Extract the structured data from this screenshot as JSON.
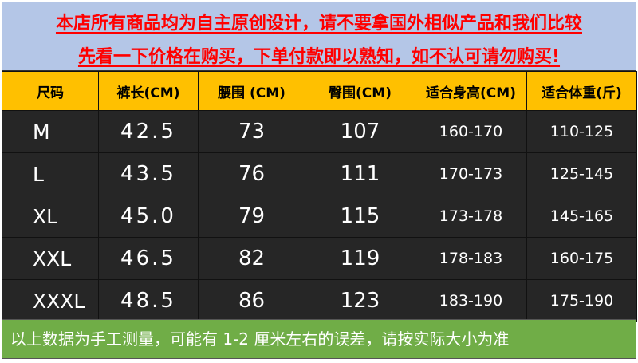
{
  "banner": {
    "line1": "本店所有商品均为自主原创设计，请不要拿国外相似产品和我们比较",
    "line2": "先看一下价格在购买，下单付款即以熟知，如不认可请勿购买!"
  },
  "table": {
    "headers": [
      "尺码",
      "裤长(CM)",
      "腰围 (CM)",
      "臀围(CM)",
      "适合身高(CM)",
      "适合体重(斤)"
    ],
    "rows": [
      [
        "M",
        "42.5",
        "73",
        "107",
        "160-170",
        "110-125"
      ],
      [
        "L",
        "43.5",
        "76",
        "111",
        "170-173",
        "125-145"
      ],
      [
        "XL",
        "45.0",
        "79",
        "115",
        "173-178",
        "145-165"
      ],
      [
        "XXL",
        "46.5",
        "82",
        "119",
        "178-183",
        "160-175"
      ],
      [
        "XXXL",
        "48.5",
        "86",
        "123",
        "183-190",
        "175-190"
      ]
    ]
  },
  "footer": {
    "note": "以上数据为手工测量，可能有 1-2 厘米左右的误差，请按实际大小为准"
  },
  "colors": {
    "banner_bg": "#b4c6e7",
    "banner_text": "#ff0000",
    "header_bg": "#ffc000",
    "row_bg": "#262626",
    "footer_bg": "#70ad47"
  }
}
